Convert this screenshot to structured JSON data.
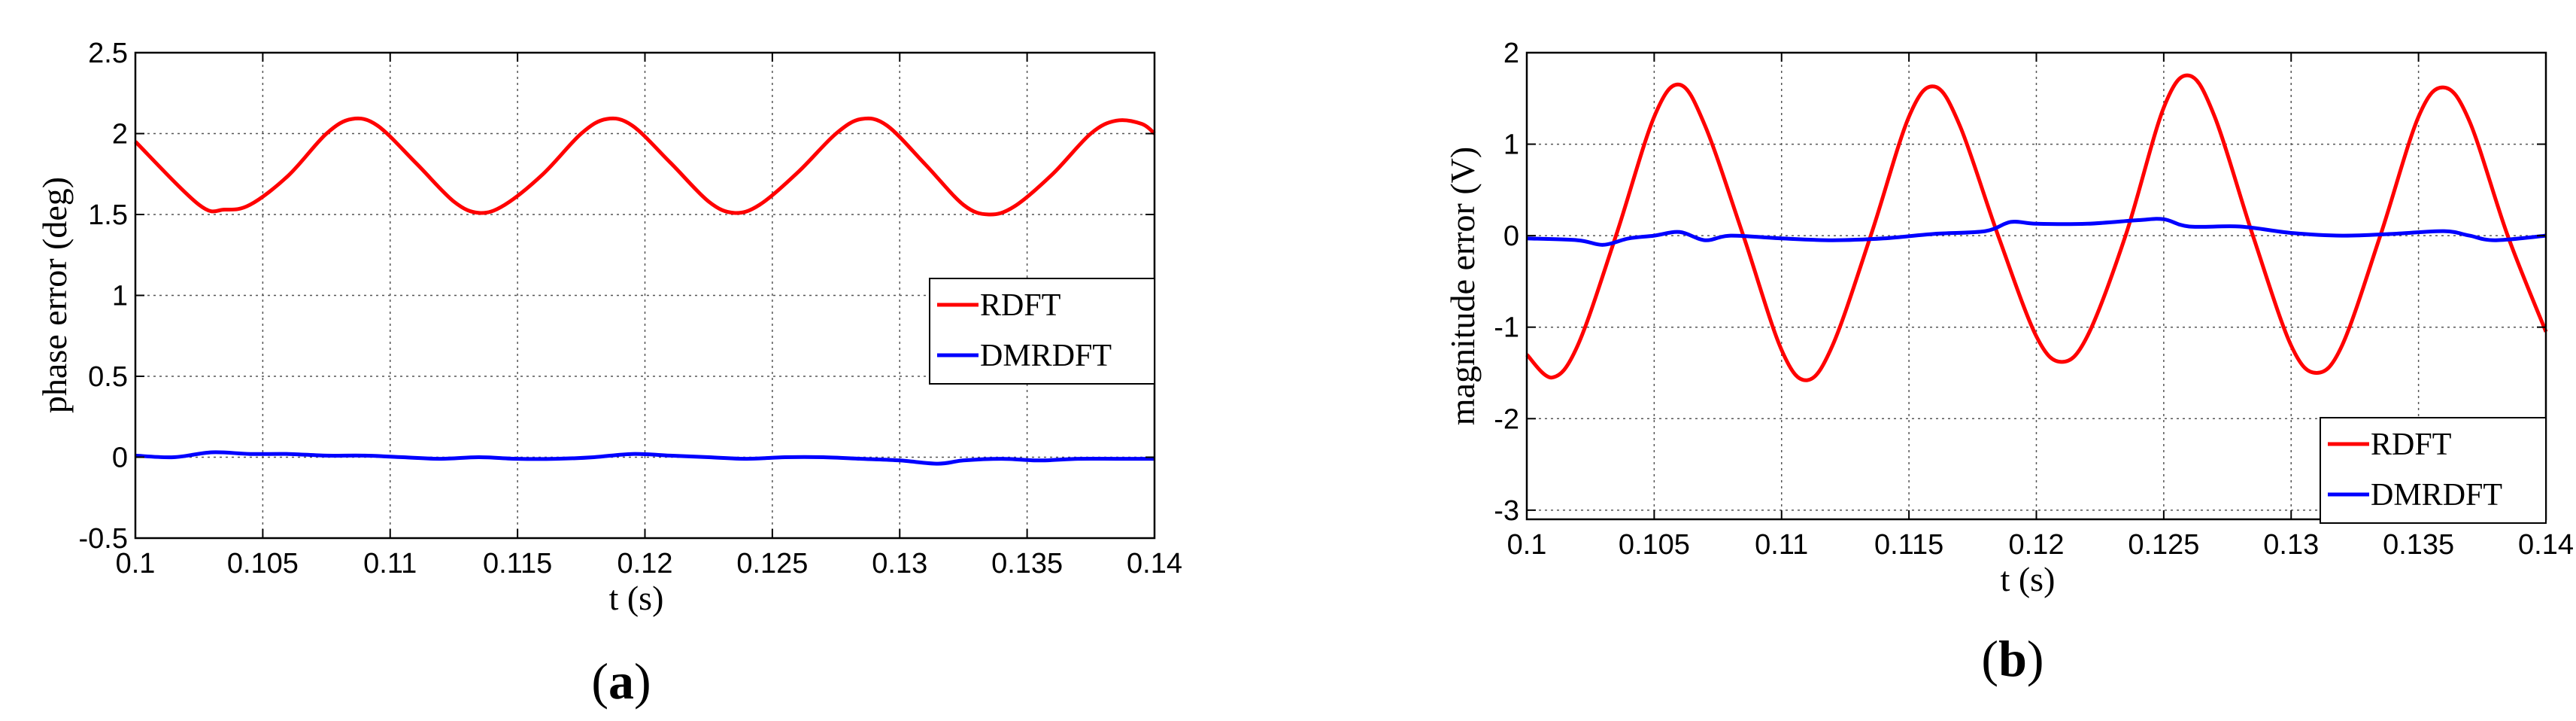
{
  "chart_data": [
    {
      "type": "line",
      "panel_label": "a",
      "xlabel": "t (s)",
      "ylabel": "phase error (deg)",
      "xlim": [
        0.1,
        0.14
      ],
      "ylim": [
        -0.5,
        2.5
      ],
      "xticks": [
        0.1,
        0.105,
        0.11,
        0.115,
        0.12,
        0.125,
        0.13,
        0.135,
        0.14
      ],
      "xtick_labels": [
        "0.1",
        "0.105",
        "0.11",
        "0.115",
        "0.12",
        "0.125",
        "0.13",
        "0.135",
        "0.14"
      ],
      "yticks": [
        -0.5,
        0,
        0.5,
        1,
        1.5,
        2,
        2.5
      ],
      "ytick_labels": [
        "-0.5",
        "0",
        "0.5",
        "1",
        "1.5",
        "2",
        "2.5"
      ],
      "grid": true,
      "legend_position": "right",
      "series": [
        {
          "name": "RDFT",
          "color": "#ff0000",
          "x": [
            0.1,
            0.1025,
            0.1035,
            0.1045,
            0.106,
            0.1075,
            0.1085,
            0.1095,
            0.111,
            0.1125,
            0.1135,
            0.1145,
            0.116,
            0.1175,
            0.1185,
            0.1195,
            0.121,
            0.1225,
            0.1235,
            0.1245,
            0.126,
            0.1275,
            0.1285,
            0.1295,
            0.131,
            0.1325,
            0.1335,
            0.1345,
            0.136,
            0.1375,
            0.1385,
            0.1395,
            0.14
          ],
          "y": [
            1.95,
            1.56,
            1.53,
            1.56,
            1.74,
            2.0,
            2.09,
            2.05,
            1.82,
            1.58,
            1.51,
            1.56,
            1.75,
            2.0,
            2.09,
            2.05,
            1.82,
            1.58,
            1.51,
            1.56,
            1.76,
            2.0,
            2.09,
            2.05,
            1.81,
            1.56,
            1.5,
            1.55,
            1.75,
            2.0,
            2.08,
            2.06,
            2.0
          ]
        },
        {
          "name": "DMRDFT",
          "color": "#0000ff",
          "x": [
            0.1,
            0.1015,
            0.103,
            0.1045,
            0.106,
            0.1075,
            0.109,
            0.1105,
            0.112,
            0.1135,
            0.115,
            0.1165,
            0.118,
            0.1195,
            0.121,
            0.1225,
            0.124,
            0.1255,
            0.127,
            0.1285,
            0.13,
            0.1315,
            0.1325,
            0.134,
            0.1355,
            0.137,
            0.1385,
            0.14
          ],
          "y": [
            0.01,
            0.0,
            0.03,
            0.02,
            0.02,
            0.01,
            0.01,
            0.0,
            -0.01,
            0.0,
            -0.01,
            -0.01,
            0.0,
            0.02,
            0.01,
            0.0,
            -0.01,
            0.0,
            0.0,
            -0.01,
            -0.02,
            -0.04,
            -0.02,
            -0.01,
            -0.02,
            -0.01,
            -0.01,
            -0.01
          ]
        }
      ]
    },
    {
      "type": "line",
      "panel_label": "b",
      "xlabel": "t (s)",
      "ylabel": "magnitude error (V)",
      "xlim": [
        0.1,
        0.14
      ],
      "ylim": [
        -3.1,
        2.0
      ],
      "xticks": [
        0.1,
        0.105,
        0.11,
        0.115,
        0.12,
        0.125,
        0.13,
        0.135,
        0.14
      ],
      "xtick_labels": [
        "0.1",
        "0.105",
        "0.11",
        "0.115",
        "0.12",
        "0.125",
        "0.13",
        "0.135",
        "0.14"
      ],
      "yticks": [
        -3,
        -2,
        -1,
        0,
        1,
        2
      ],
      "ytick_labels": [
        "-3",
        "-2",
        "-1",
        "0",
        "1",
        "2"
      ],
      "grid": true,
      "legend_position": "bottom-right",
      "series": [
        {
          "name": "RDFT",
          "color": "#ff0000",
          "x": [
            0.1,
            0.101,
            0.102,
            0.1035,
            0.105,
            0.106,
            0.107,
            0.1085,
            0.11,
            0.111,
            0.112,
            0.1135,
            0.115,
            0.116,
            0.117,
            0.1185,
            0.12,
            0.121,
            0.122,
            0.1235,
            0.125,
            0.126,
            0.127,
            0.1285,
            0.13,
            0.131,
            0.132,
            0.1335,
            0.135,
            0.136,
            0.137,
            0.1385,
            0.14
          ],
          "y": [
            -1.3,
            -1.55,
            -1.2,
            0.0,
            1.3,
            1.65,
            1.2,
            0.0,
            -1.25,
            -1.58,
            -1.2,
            0.0,
            1.3,
            1.63,
            1.2,
            0.0,
            -1.1,
            -1.38,
            -1.1,
            0.0,
            1.4,
            1.75,
            1.3,
            0.0,
            -1.2,
            -1.5,
            -1.2,
            0.0,
            1.3,
            1.62,
            1.25,
            0.0,
            -1.05
          ]
        },
        {
          "name": "DMRDFT",
          "color": "#0000ff",
          "x": [
            0.1,
            0.102,
            0.103,
            0.104,
            0.105,
            0.106,
            0.107,
            0.108,
            0.11,
            0.112,
            0.114,
            0.116,
            0.118,
            0.119,
            0.12,
            0.122,
            0.124,
            0.125,
            0.126,
            0.128,
            0.13,
            0.132,
            0.134,
            0.136,
            0.137,
            0.138,
            0.14
          ],
          "y": [
            -0.03,
            -0.05,
            -0.1,
            -0.03,
            0.0,
            0.04,
            -0.05,
            0.0,
            -0.03,
            -0.05,
            -0.03,
            0.02,
            0.05,
            0.15,
            0.13,
            0.13,
            0.17,
            0.18,
            0.1,
            0.1,
            0.03,
            0.0,
            0.02,
            0.05,
            0.0,
            -0.05,
            0.0
          ]
        }
      ]
    }
  ]
}
